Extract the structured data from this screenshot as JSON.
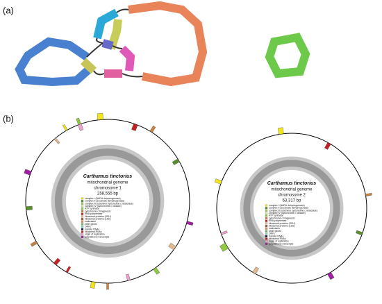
{
  "panel_a": {
    "label": "(a)"
  },
  "panel_b": {
    "label": "(b)"
  },
  "maps": [
    {
      "species": "Carthamus tinctorius",
      "genome": "mitochondrial genome",
      "chromosome": "chromosome 1",
      "size": "258,555 bp"
    },
    {
      "species": "Carthamus tinctorius",
      "genome": "mitochondrial genome",
      "chromosome": "chromosome 2",
      "size": "63,317 bp"
    }
  ],
  "legend": [
    {
      "label": "complex I (NADH dehydrogenase)",
      "color": "#f3e51c"
    },
    {
      "label": "complex II (succinate dehydrogenase)",
      "color": "#5a8f2d"
    },
    {
      "label": "complex III (ubichinol cytochrome c reductase)",
      "color": "#a6c85a"
    },
    {
      "label": "complex IV (cytochrome c oxidase)",
      "color": "#d4e8a8"
    },
    {
      "label": "ATP synthase",
      "color": "#90c840"
    },
    {
      "label": "cytochrome c biogenesis",
      "color": "#c8813e"
    },
    {
      "label": "RNA polymerase",
      "color": "#c82020"
    },
    {
      "label": "ribosomal proteins (SSU)",
      "color": "#e0b890"
    },
    {
      "label": "ribosomal proteins (LSU)",
      "color": "#a05a28"
    },
    {
      "label": "maturases",
      "color": "#e09060"
    },
    {
      "label": "other genes",
      "color": "#6fb25a"
    },
    {
      "label": "ORFs",
      "color": "#8fd0c0"
    },
    {
      "label": "transfer RNAs",
      "color": "#1a1a40"
    },
    {
      "label": "ribosomal RNAs",
      "color": "#d02020"
    },
    {
      "label": "origin of replication",
      "color": "#f0a0d0"
    },
    {
      "label": "polycistronic transcripts",
      "color": "#a020a0"
    }
  ]
}
